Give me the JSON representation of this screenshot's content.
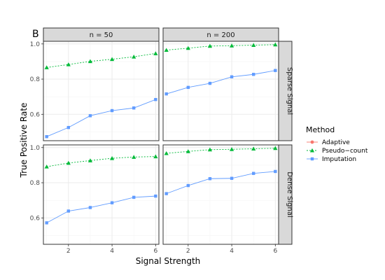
{
  "chart_data": {
    "type": "line",
    "tag": "B",
    "xlabel": "Signal Strength",
    "ylabel": "True Positive Rate",
    "xlim": [
      0.85,
      6.15
    ],
    "ylim": [
      0.45,
      1.015
    ],
    "x_ticks": [
      2,
      4,
      6
    ],
    "y_ticks": [
      0.6,
      0.8,
      1.0
    ],
    "y_tick_labels": [
      "0.6",
      "0.8",
      "1.0"
    ],
    "grid": true,
    "column_facets": [
      "n = 50",
      "n = 200"
    ],
    "row_facets": [
      "Sparse Signal",
      "Dense Signal"
    ],
    "legend": {
      "title": "Method",
      "position": "right",
      "entries": [
        {
          "name": "Adaptive",
          "color": "#F8766D",
          "shape": "circle",
          "linetype": "solid"
        },
        {
          "name": "Pseudo−count",
          "color": "#00BA38",
          "shape": "triangle",
          "linetype": "dotted"
        },
        {
          "name": "Imputation",
          "color": "#619CFF",
          "shape": "square",
          "linetype": "solid"
        }
      ]
    },
    "x": [
      1,
      2,
      3,
      4,
      5,
      6
    ],
    "panels": [
      {
        "col": 0,
        "row": 0,
        "series": [
          {
            "name": "Pseudo−count",
            "values": [
              0.866,
              0.883,
              0.901,
              0.913,
              0.927,
              0.946
            ]
          },
          {
            "name": "Imputation",
            "values": [
              0.473,
              0.525,
              0.592,
              0.621,
              0.636,
              0.684
            ]
          }
        ]
      },
      {
        "col": 1,
        "row": 0,
        "series": [
          {
            "name": "Pseudo−count",
            "values": [
              0.965,
              0.976,
              0.988,
              0.99,
              0.993,
              0.996
            ]
          },
          {
            "name": "Imputation",
            "values": [
              0.716,
              0.753,
              0.776,
              0.813,
              0.827,
              0.849
            ]
          }
        ]
      },
      {
        "col": 0,
        "row": 1,
        "series": [
          {
            "name": "Pseudo−count",
            "values": [
              0.891,
              0.912,
              0.926,
              0.939,
              0.946,
              0.949
            ]
          },
          {
            "name": "Imputation",
            "values": [
              0.572,
              0.639,
              0.659,
              0.686,
              0.717,
              0.724
            ]
          }
        ]
      },
      {
        "col": 1,
        "row": 1,
        "series": [
          {
            "name": "Pseudo−count",
            "values": [
              0.967,
              0.978,
              0.988,
              0.99,
              0.993,
              0.996
            ]
          },
          {
            "name": "Imputation",
            "values": [
              0.738,
              0.784,
              0.823,
              0.825,
              0.853,
              0.864
            ]
          }
        ]
      }
    ]
  }
}
